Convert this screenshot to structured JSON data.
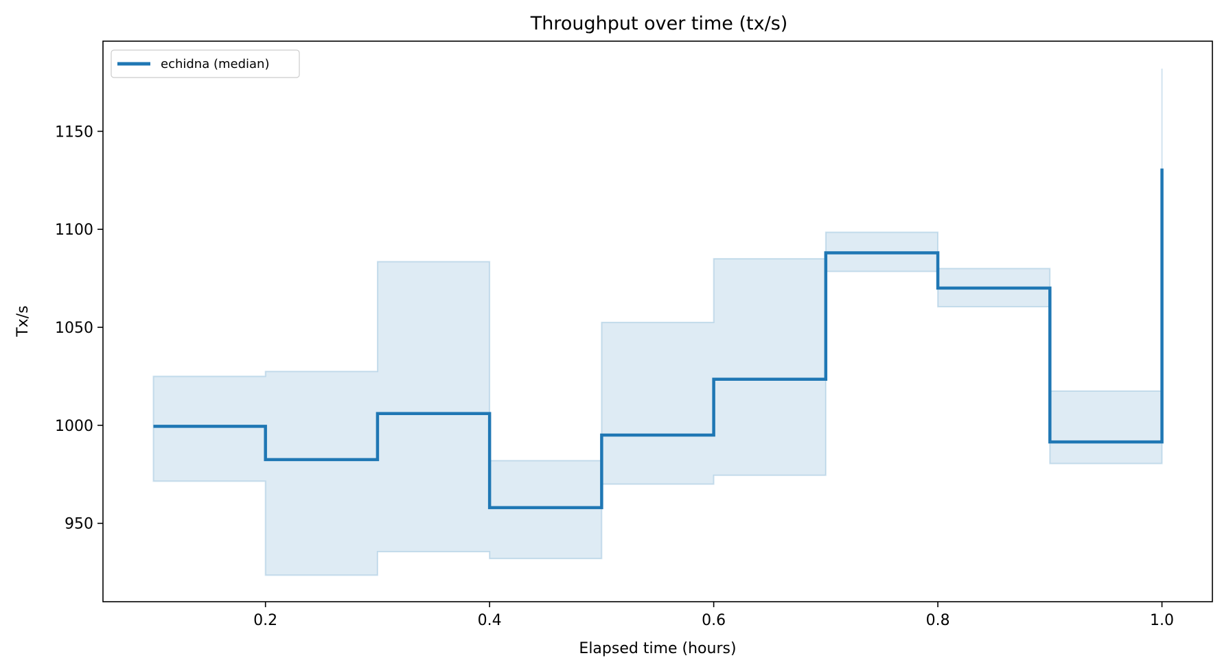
{
  "chart_data": {
    "type": "line",
    "title": "Throughput over time (tx/s)",
    "xlabel": "Elapsed time (hours)",
    "ylabel": "Tx/s",
    "xlim": [
      0.055,
      1.045
    ],
    "ylim": [
      910,
      1196
    ],
    "x_ticks": [
      0.2,
      0.4,
      0.6,
      0.8,
      1.0
    ],
    "x_tick_labels": [
      "0.2",
      "0.4",
      "0.6",
      "0.8",
      "1.0"
    ],
    "y_ticks": [
      950,
      1000,
      1050,
      1100,
      1150
    ],
    "y_tick_labels": [
      "950",
      "1000",
      "1050",
      "1100",
      "1150"
    ],
    "grid": false,
    "legend": {
      "placement": "top-left",
      "entries": [
        "echidna (median)"
      ]
    },
    "series": [
      {
        "name": "echidna (median)",
        "color": "#1f77b4",
        "step": "post",
        "x": [
          0.1,
          0.2,
          0.3,
          0.4,
          0.5,
          0.6,
          0.7,
          0.8,
          0.9,
          1.0
        ],
        "y": [
          999.5,
          982.5,
          1006,
          958,
          995,
          1023.5,
          1088,
          1070,
          991.5,
          1131
        ],
        "band": {
          "lower": [
            971.5,
            923.5,
            935.5,
            932,
            970,
            974.5,
            1078.5,
            1060.5,
            980.5,
            1080
          ],
          "upper": [
            1025,
            1027.5,
            1083.5,
            982,
            1052.5,
            1085,
            1098.5,
            1080,
            1017.5,
            1182
          ],
          "color": "#1f77b4"
        }
      }
    ]
  }
}
